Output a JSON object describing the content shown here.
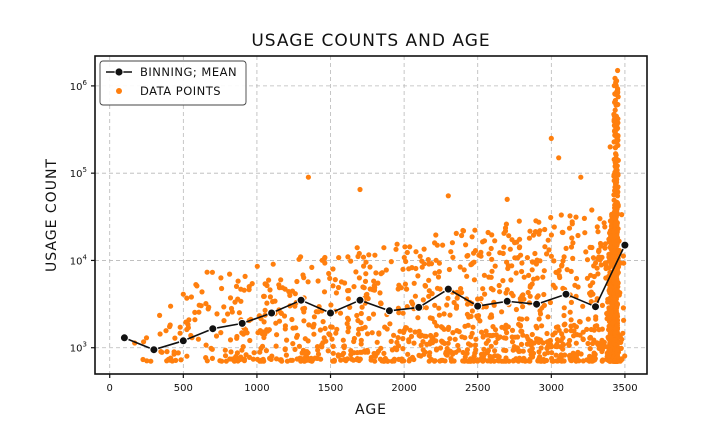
{
  "chart_data": {
    "type": "scatter",
    "title": "USAGE COUNTS AND AGE",
    "xlabel": "AGE",
    "ylabel": "USAGE COUNT",
    "xlim": [
      -100,
      3650
    ],
    "ylim": [
      500,
      2200000
    ],
    "y_scale": "log",
    "grid": true,
    "legend_position": "top-left",
    "x_ticks": [
      {
        "value": 0,
        "label": "0"
      },
      {
        "value": 500,
        "label": "500"
      },
      {
        "value": 1000,
        "label": "1000"
      },
      {
        "value": 1500,
        "label": "1500"
      },
      {
        "value": 2000,
        "label": "2000"
      },
      {
        "value": 2500,
        "label": "2500"
      },
      {
        "value": 3000,
        "label": "3000"
      },
      {
        "value": 3500,
        "label": "3500"
      }
    ],
    "y_ticks": [
      {
        "value": 1000,
        "base": "10",
        "exp": "3"
      },
      {
        "value": 10000,
        "base": "10",
        "exp": "4"
      },
      {
        "value": 100000,
        "base": "10",
        "exp": "5"
      },
      {
        "value": 1000000,
        "base": "10",
        "exp": "6"
      }
    ],
    "series": [
      {
        "name": "BINNING; MEAN",
        "kind": "line",
        "color": "#111111",
        "x": [
          100,
          300,
          500,
          700,
          900,
          1100,
          1300,
          1500,
          1700,
          1900,
          2100,
          2300,
          2500,
          2700,
          2900,
          3100,
          3300,
          3500
        ],
        "y": [
          1300,
          950,
          1200,
          1650,
          1900,
          2500,
          3500,
          2500,
          3500,
          2650,
          2900,
          4700,
          3000,
          3400,
          3150,
          4100,
          2950,
          15000
        ]
      },
      {
        "name": "DATA POINTS",
        "kind": "scatter",
        "color": "#ff7f0e",
        "x_range": [
          150,
          3500
        ],
        "y_range": [
          700,
          1600000
        ],
        "notable_points": [
          {
            "x": 1350,
            "y": 90000
          },
          {
            "x": 1700,
            "y": 65000
          },
          {
            "x": 2300,
            "y": 55000
          },
          {
            "x": 2700,
            "y": 50000
          },
          {
            "x": 3000,
            "y": 250000
          },
          {
            "x": 3050,
            "y": 150000
          },
          {
            "x": 3200,
            "y": 90000
          },
          {
            "x": 3400,
            "y": 200000
          },
          {
            "x": 3450,
            "y": 1500000
          },
          {
            "x": 3450,
            "y": 900000
          },
          {
            "x": 3440,
            "y": 600000
          },
          {
            "x": 3445,
            "y": 350000
          }
        ]
      }
    ]
  }
}
